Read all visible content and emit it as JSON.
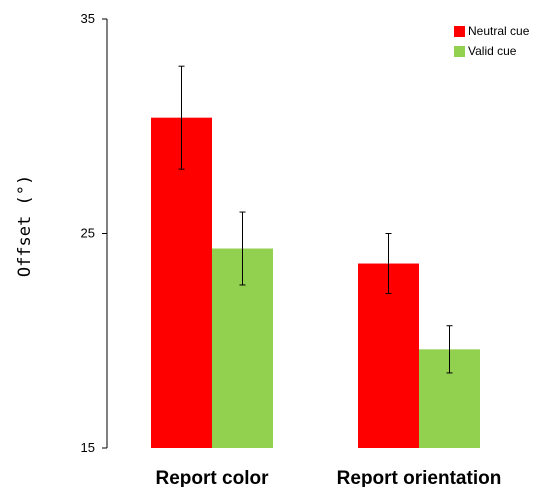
{
  "chart_data": {
    "type": "bar",
    "title": "",
    "xlabel": "",
    "ylabel": "Offset (°)",
    "ylim": [
      15,
      35
    ],
    "yticks": [
      15,
      25,
      35
    ],
    "categories": [
      "Report color",
      "Report orientation"
    ],
    "series": [
      {
        "name": "Neutral cue",
        "color": "#ff0000",
        "values": [
          30.4,
          23.6
        ],
        "errors": [
          2.4,
          1.4
        ]
      },
      {
        "name": "Valid cue",
        "color": "#92d050",
        "values": [
          24.3,
          19.6
        ],
        "errors": [
          1.7,
          1.1
        ]
      }
    ],
    "legend_position": "top-right",
    "grid": false
  }
}
